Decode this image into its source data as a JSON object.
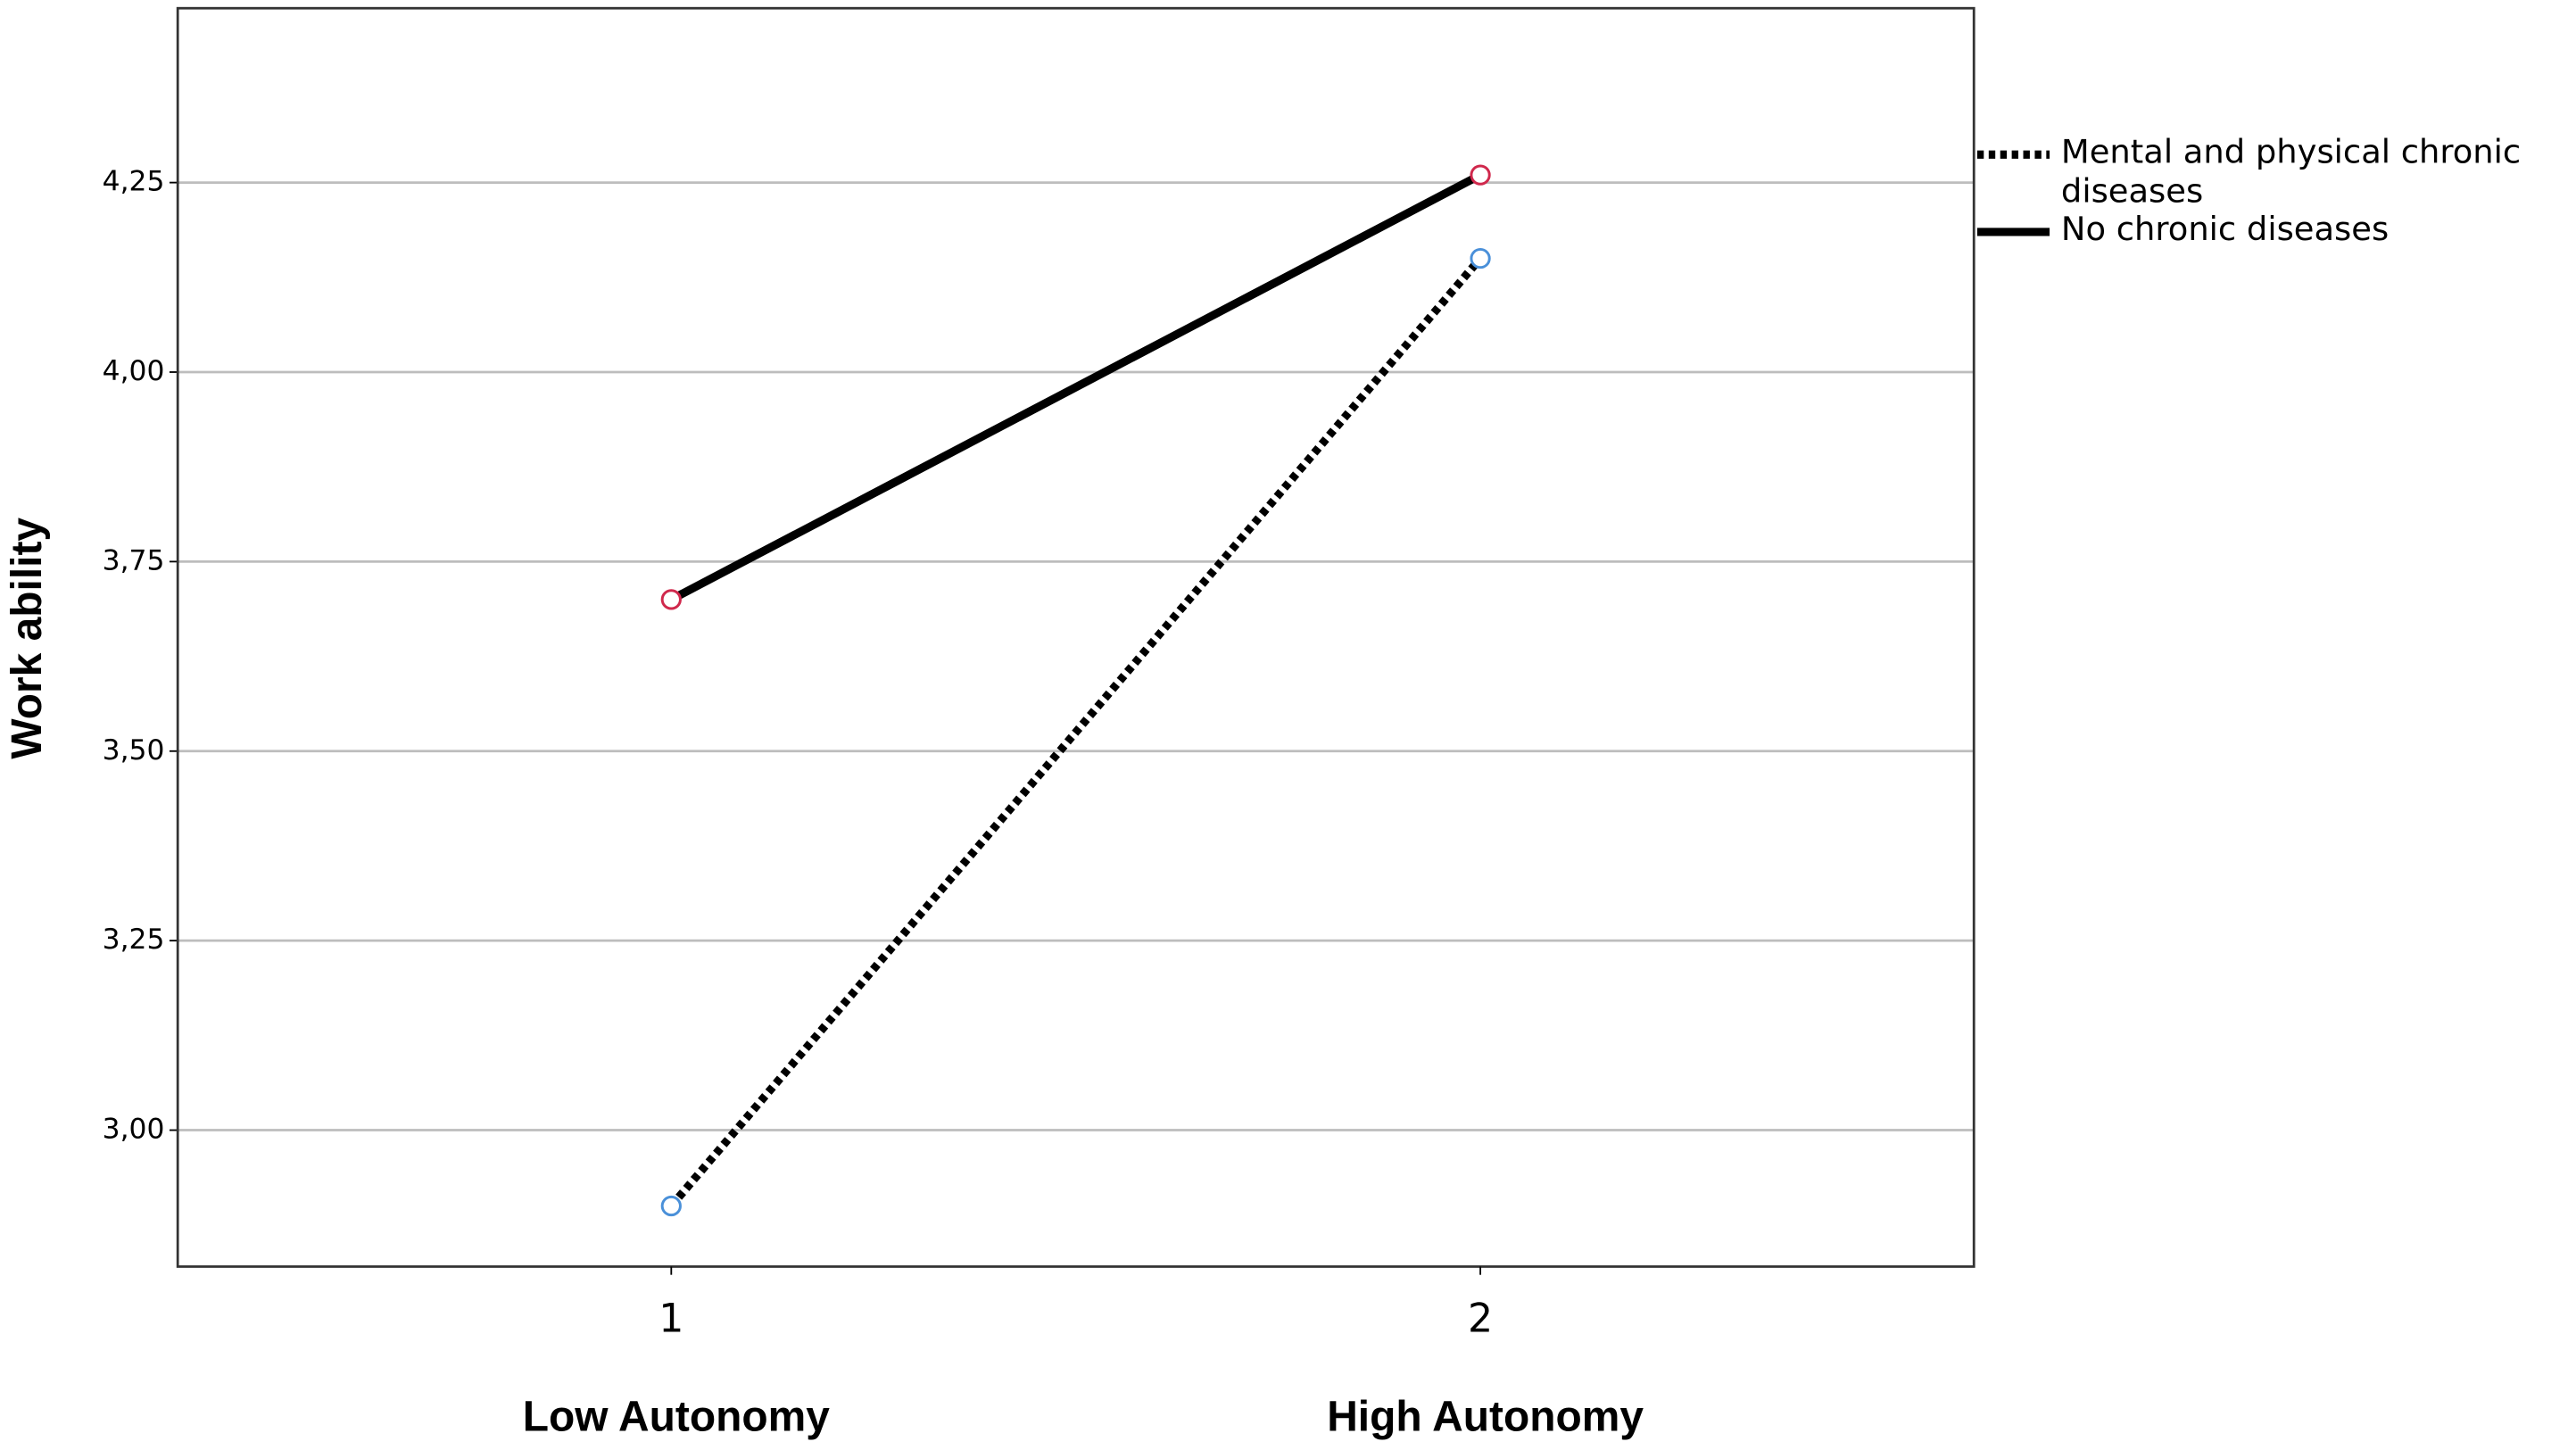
{
  "chart_data": {
    "type": "line",
    "y_label": "Work ability",
    "xtick_descriptions": [
      "Low Autonomy",
      "High Autonomy"
    ],
    "x": [
      1,
      2
    ],
    "xlim": [
      0.39,
      2.61
    ],
    "xticks": [
      1,
      2
    ],
    "ylim": [
      2.82,
      4.48
    ],
    "yticks": [
      {
        "value": 3.0,
        "label": "3,00"
      },
      {
        "value": 3.25,
        "label": "3,25"
      },
      {
        "value": 3.5,
        "label": "3,50"
      },
      {
        "value": 3.75,
        "label": "3,75"
      },
      {
        "value": 4.0,
        "label": "4,00"
      },
      {
        "value": 4.25,
        "label": "4,25"
      }
    ],
    "grid": true,
    "legend": "right",
    "series": [
      {
        "name": "Mental and physical chronic diseases",
        "color": "#000000",
        "dash": "dotted",
        "marker_color": "#4a90d9",
        "values": [
          2.9,
          4.15
        ]
      },
      {
        "name": "No chronic diseases",
        "color": "#000000",
        "dash": "solid",
        "marker_color": "#d0284c",
        "values": [
          3.7,
          4.26
        ]
      }
    ]
  }
}
